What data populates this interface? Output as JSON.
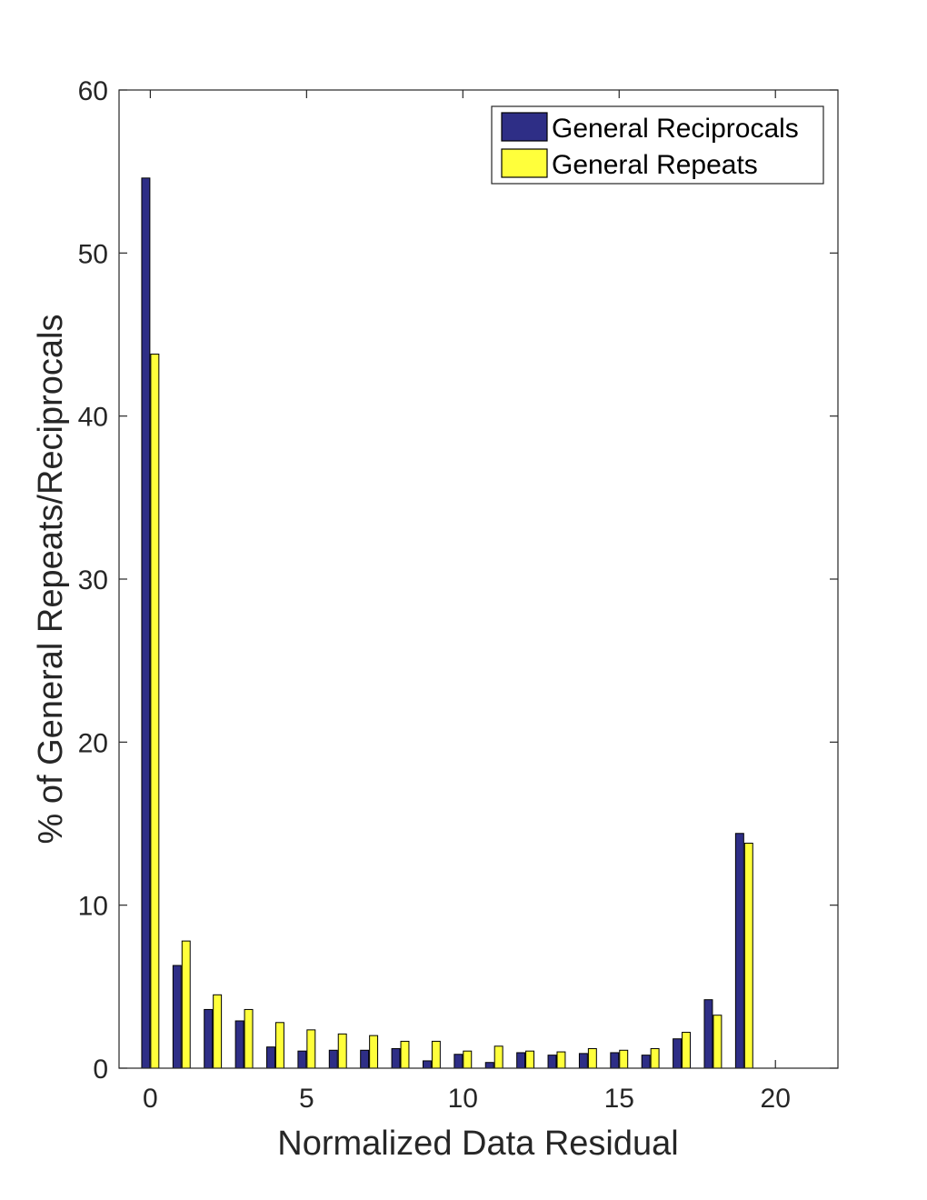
{
  "chart_data": {
    "type": "bar",
    "title": "",
    "xlabel": "Normalized Data Residual",
    "ylabel": "% of General Repeats/Reciprocals",
    "xlim": [
      -1,
      22
    ],
    "ylim": [
      0,
      60
    ],
    "xticks": [
      "0",
      "5",
      "10",
      "15",
      "20"
    ],
    "yticks": [
      "0",
      "10",
      "20",
      "30",
      "40",
      "50",
      "60"
    ],
    "grid": false,
    "legend_position": "top-right",
    "x": [
      0,
      1,
      2,
      3,
      4,
      5,
      6,
      7,
      8,
      9,
      10,
      11,
      12,
      13,
      14,
      15,
      16,
      17,
      18,
      19,
      20,
      21
    ],
    "series": [
      {
        "name": "General Reciprocals",
        "color": "#2e2e86",
        "values": [
          54.6,
          6.3,
          3.6,
          2.9,
          1.3,
          1.05,
          1.1,
          1.1,
          1.2,
          0.45,
          0.85,
          0.35,
          0.95,
          0.8,
          0.9,
          0.95,
          0.8,
          1.8,
          4.2,
          14.4,
          0,
          0
        ]
      },
      {
        "name": "General Repeats",
        "color": "#ffff3b",
        "values": [
          43.8,
          7.8,
          4.5,
          3.6,
          2.8,
          2.35,
          2.1,
          2.0,
          1.65,
          1.65,
          1.05,
          1.35,
          1.05,
          1.0,
          1.2,
          1.1,
          1.2,
          2.2,
          3.25,
          13.8,
          0,
          0
        ]
      }
    ]
  }
}
